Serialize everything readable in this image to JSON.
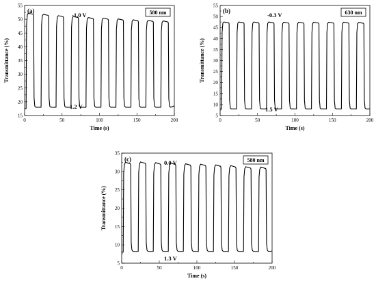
{
  "chart_data": [
    {
      "type": "line",
      "panel": "(a)",
      "wavelength": "580 nm",
      "annotation_high": "-1.0 V",
      "annotation_low": "1.2 V",
      "xlabel": "Time (s)",
      "ylabel": "Transmittance (%)",
      "xlim": [
        0,
        200
      ],
      "ylim": [
        15,
        55
      ],
      "xticks": [
        0,
        50,
        100,
        150,
        200
      ],
      "yticks": [
        15,
        20,
        25,
        30,
        35,
        40,
        45,
        50,
        55
      ],
      "period": 20,
      "high_values": [
        52.2,
        51.8,
        51.3,
        51.0,
        50.6,
        50.4,
        50.1,
        49.8,
        49.6,
        49.4
      ],
      "low_values": [
        18.0,
        18.0,
        18.0,
        18.0,
        18.0,
        18.0,
        18.0,
        18.0,
        18.0,
        18.0
      ],
      "start_value": 17.5,
      "end_value": 18.5
    },
    {
      "type": "line",
      "panel": "(b)",
      "wavelength": "630 nm",
      "annotation_high": "-0.3 V",
      "annotation_low": "1.5 V",
      "xlabel": "Time (s)",
      "ylabel": "Transmittance (%)",
      "xlim": [
        0,
        200
      ],
      "ylim": [
        5,
        55
      ],
      "xticks": [
        0,
        50,
        100,
        150,
        200
      ],
      "yticks": [
        5,
        10,
        15,
        20,
        25,
        30,
        35,
        40,
        45,
        50,
        55
      ],
      "period": 20,
      "high_values": [
        47.5,
        47.5,
        47.5,
        47.5,
        47.4,
        47.4,
        47.4,
        47.4,
        47.4,
        47.3
      ],
      "low_values": [
        8.0,
        8.0,
        8.0,
        8.0,
        8.0,
        8.0,
        8.0,
        8.0,
        8.0,
        8.0
      ],
      "start_value": 8.0,
      "end_value": 8.0
    },
    {
      "type": "line",
      "panel": "(c)",
      "wavelength": "580 nm",
      "annotation_high": "0.0 V",
      "annotation_low": "1.3 V",
      "xlabel": "Time (s)",
      "ylabel": "Transmittance (%)",
      "xlim": [
        0,
        200
      ],
      "ylim": [
        5,
        35
      ],
      "xticks": [
        0,
        50,
        100,
        150,
        200
      ],
      "yticks": [
        5,
        10,
        15,
        20,
        25,
        30,
        35
      ],
      "period": 20,
      "high_values": [
        32.5,
        32.6,
        32.4,
        32.3,
        32.1,
        32.0,
        31.8,
        31.6,
        31.3,
        31.2
      ],
      "low_values": [
        8.2,
        8.2,
        8.2,
        8.2,
        8.2,
        8.2,
        8.2,
        8.2,
        8.2,
        8.2
      ],
      "start_value": 8.0,
      "end_value": 8.3
    }
  ]
}
